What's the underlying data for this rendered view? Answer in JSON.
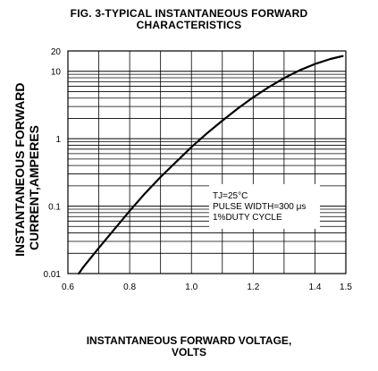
{
  "chart_data": {
    "type": "line",
    "title": "FIG. 3-TYPICAL INSTANTANEOUS FORWARD",
    "title_line2": "CHARACTERISTICS",
    "xlabel": "INSTANTANEOUS FORWARD VOLTAGE,",
    "xlabel_line2": "VOLTS",
    "ylabel": "INSTANTANEOUS FORWARD",
    "ylabel_line2": "CURRENT,AMPERES",
    "xlim": [
      0.6,
      1.5
    ],
    "ylim": [
      0.01,
      20
    ],
    "y_scale": "log",
    "grid": true,
    "x_ticks": [
      "0.6",
      "0.8",
      "1.0",
      "1.2",
      "1.4",
      "1.5"
    ],
    "y_ticks": [
      "0.01",
      "0.1",
      "1",
      "10",
      "20"
    ],
    "series": [
      {
        "x": [
          0.635,
          0.65,
          0.7,
          0.75,
          0.8,
          0.85,
          0.9,
          0.95,
          1.0,
          1.05,
          1.1,
          1.15,
          1.2,
          1.25,
          1.3,
          1.35,
          1.4,
          1.45,
          1.49
        ],
        "y": [
          0.01,
          0.0125,
          0.024,
          0.045,
          0.085,
          0.155,
          0.27,
          0.45,
          0.75,
          1.2,
          1.85,
          2.8,
          4.1,
          5.8,
          7.9,
          10.3,
          12.8,
          15.2,
          16.8
        ]
      }
    ],
    "annotation": {
      "line1": "TJ=25°C",
      "line2": "PULSE WIDTH=300 μs",
      "line3": "1%DUTY CYCLE"
    }
  }
}
